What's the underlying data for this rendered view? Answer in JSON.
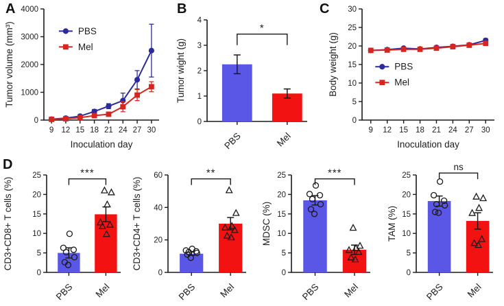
{
  "panels": {
    "A": {
      "letter": "A"
    },
    "B": {
      "letter": "B"
    },
    "C": {
      "letter": "C"
    },
    "D": {
      "letter": "D"
    }
  },
  "colors": {
    "pbs_line": "#2b2b9e",
    "mel_line": "#d8251f",
    "pbs_bar": "#5a56e6",
    "mel_bar": "#f31212",
    "axis": "#1a1a1a",
    "error_bar": "#1a1a1a"
  },
  "chart_data": [
    {
      "id": "A",
      "type": "line",
      "xlabel": "Inoculation day",
      "ylabel": "Tumor volume (mm³)",
      "x": [
        9,
        12,
        15,
        18,
        21,
        24,
        27,
        30
      ],
      "xticks": [
        9,
        12,
        15,
        18,
        21,
        24,
        27,
        30
      ],
      "ylim": [
        0,
        4000
      ],
      "yticks": [
        0,
        1000,
        2000,
        3000,
        4000
      ],
      "legend_position": "upper-left",
      "grid": false,
      "series": [
        {
          "name": "PBS",
          "color": "#2b2b9e",
          "marker": "circle",
          "values": [
            30,
            70,
            140,
            310,
            500,
            700,
            1450,
            2500
          ],
          "errors": [
            20,
            30,
            50,
            70,
            90,
            270,
            330,
            950
          ]
        },
        {
          "name": "Mel",
          "color": "#d8251f",
          "marker": "square",
          "values": [
            25,
            50,
            90,
            160,
            210,
            480,
            900,
            1200
          ],
          "errors": [
            15,
            20,
            30,
            40,
            60,
            180,
            200,
            180
          ]
        }
      ]
    },
    {
      "id": "B",
      "type": "bar",
      "ylabel": "Tumor wight (g)",
      "categories": [
        "PBS",
        "Mel"
      ],
      "values": [
        2.25,
        1.1
      ],
      "errors": [
        0.37,
        0.18
      ],
      "bar_colors": [
        "#5a56e6",
        "#f31212"
      ],
      "ylim": [
        0,
        4
      ],
      "yticks": [
        0,
        1,
        2,
        3,
        4
      ],
      "significance": {
        "label": "*",
        "level_frac": 0.86
      }
    },
    {
      "id": "C",
      "type": "line",
      "xlabel": "Inoculation day",
      "ylabel": "Body weight (g)",
      "x": [
        9,
        12,
        15,
        18,
        21,
        24,
        27,
        30
      ],
      "xticks": [
        9,
        12,
        15,
        18,
        21,
        24,
        27,
        30
      ],
      "ylim": [
        0,
        30
      ],
      "yticks": [
        0,
        5,
        10,
        15,
        20,
        25,
        30
      ],
      "legend_position": "mid-left",
      "grid": false,
      "series": [
        {
          "name": "PBS",
          "color": "#2b2b9e",
          "marker": "circle",
          "values": [
            18.8,
            19.0,
            19.4,
            19.2,
            19.6,
            19.9,
            20.3,
            21.5
          ],
          "errors": [
            0.3,
            0.3,
            0.3,
            0.3,
            0.3,
            0.3,
            0.4,
            0.5
          ]
        },
        {
          "name": "Mel",
          "color": "#d8251f",
          "marker": "square",
          "values": [
            18.8,
            18.9,
            19.1,
            19.1,
            19.4,
            19.8,
            20.2,
            20.7
          ],
          "errors": [
            0.3,
            0.3,
            0.3,
            0.3,
            0.3,
            0.3,
            0.4,
            0.5
          ]
        }
      ]
    },
    {
      "id": "D1",
      "type": "bar",
      "ylabel": "CD3+CD8+ T cells (%)",
      "categories": [
        "PBS",
        "Mel"
      ],
      "values": [
        5.0,
        14.9
      ],
      "errors": [
        1.3,
        1.9
      ],
      "bar_colors": [
        "#5a56e6",
        "#f31212"
      ],
      "ylim": [
        0,
        25
      ],
      "yticks": [
        0,
        5,
        10,
        15,
        20,
        25
      ],
      "points": [
        {
          "marker": "ocircle",
          "values": [
            9.9,
            6.3,
            5.8,
            5.2,
            3.9,
            2.6,
            1.9
          ]
        },
        {
          "marker": "otriangle",
          "values": [
            21.0,
            20.5,
            17.4,
            12.8,
            12.2,
            11.8,
            9.8
          ]
        }
      ],
      "significance": {
        "label": "***",
        "level_frac": 0.96
      }
    },
    {
      "id": "D2",
      "type": "bar",
      "ylabel": "CD3+CD4+ T cells (%)",
      "categories": [
        "PBS",
        "Mel"
      ],
      "values": [
        11.5,
        30.0
      ],
      "errors": [
        1.0,
        3.8
      ],
      "bar_colors": [
        "#5a56e6",
        "#f31212"
      ],
      "ylim": [
        0,
        60
      ],
      "yticks": [
        0,
        20,
        40,
        60
      ],
      "points": [
        {
          "marker": "ocircle",
          "values": [
            14.5,
            13.5,
            13.0,
            12.5,
            12.0,
            11.0,
            9.0
          ]
        },
        {
          "marker": "otriangle",
          "values": [
            50.5,
            36.5,
            28.5,
            27.5,
            26.0,
            22.5,
            21.5
          ]
        }
      ],
      "significance": {
        "label": "**",
        "level_frac": 0.96
      }
    },
    {
      "id": "D3",
      "type": "bar",
      "ylabel": "MDSC (%)",
      "categories": [
        "PBS",
        "Mel"
      ],
      "values": [
        18.5,
        5.8
      ],
      "errors": [
        1.2,
        1.2
      ],
      "bar_colors": [
        "#5a56e6",
        "#f31212"
      ],
      "ylim": [
        0,
        25
      ],
      "yticks": [
        0,
        5,
        10,
        15,
        20,
        25
      ],
      "points": [
        {
          "marker": "ocircle",
          "values": [
            22.3,
            20.1,
            19.8,
            18.8,
            17.5,
            16.2,
            15.0
          ]
        },
        {
          "marker": "otriangle",
          "values": [
            11.4,
            6.8,
            6.2,
            5.7,
            5.2,
            3.8,
            3.3
          ]
        }
      ],
      "significance": {
        "label": "***",
        "level_frac": 0.96
      }
    },
    {
      "id": "D4",
      "type": "bar",
      "ylabel": "TAM (%)",
      "categories": [
        "PBS",
        "Mel"
      ],
      "values": [
        18.3,
        13.2
      ],
      "errors": [
        1.3,
        2.1
      ],
      "bar_colors": [
        "#5a56e6",
        "#f31212"
      ],
      "ylim": [
        0,
        25
      ],
      "yticks": [
        0,
        5,
        10,
        15,
        20,
        25
      ],
      "points": [
        {
          "marker": "ocircle",
          "values": [
            23.3,
            19.8,
            18.4,
            17.5,
            17.2,
            15.5,
            15.3
          ]
        },
        {
          "marker": "otriangle",
          "values": [
            19.4,
            19.0,
            16.5,
            15.2,
            8.5,
            7.5,
            7.0
          ]
        }
      ],
      "significance": {
        "label": "ns",
        "level_frac": 1.02
      }
    }
  ]
}
